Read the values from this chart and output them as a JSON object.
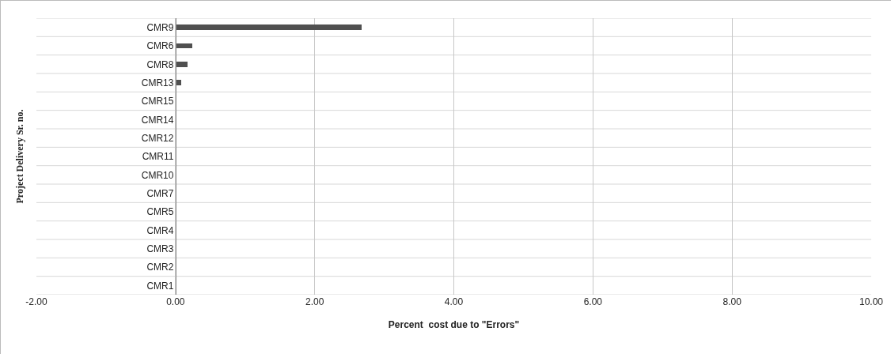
{
  "chart_data": {
    "type": "bar",
    "orientation": "horizontal",
    "xlabel": "Percent  cost due to \"Errors\"",
    "ylabel": "Project Delivery Sr. no.",
    "categories": [
      "CMR9",
      "CMR6",
      "CMR8",
      "CMR13",
      "CMR15",
      "CMR14",
      "CMR12",
      "CMR11",
      "CMR10",
      "CMR7",
      "CMR5",
      "CMR4",
      "CMR3",
      "CMR2",
      "CMR1"
    ],
    "values": [
      2.67,
      0.24,
      0.17,
      0.08,
      0,
      0,
      0,
      0,
      0,
      0,
      0,
      0,
      0,
      0,
      0
    ],
    "color": "#505050",
    "xlim": [
      -2,
      10
    ],
    "xticks": [
      {
        "value": -2,
        "label": "-2.00"
      },
      {
        "value": 0,
        "label": "0.00"
      },
      {
        "value": 2,
        "label": "2.00"
      },
      {
        "value": 4,
        "label": "4.00"
      },
      {
        "value": 6,
        "label": "6.00"
      },
      {
        "value": 8,
        "label": "8.00"
      },
      {
        "value": 10,
        "label": "10.00"
      }
    ],
    "grid": true
  }
}
